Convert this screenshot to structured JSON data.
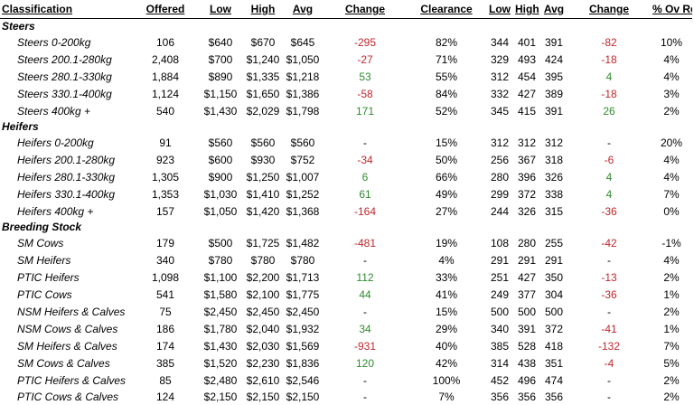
{
  "headers": {
    "classification": "Classification",
    "offered": "Offered",
    "low": "Low",
    "high": "High",
    "avg": "Avg",
    "change": "Change",
    "clearance": "Clearance",
    "low_res": "Low",
    "high_res": "High",
    "avg_res": "Avg",
    "change_res": "Change",
    "pct_ov_res": "% Ov Res"
  },
  "colors": {
    "negative": "#c0272d",
    "positive": "#2e8b2e"
  },
  "groups": [
    {
      "label": "Steers",
      "rows": [
        {
          "name": "Steers 0-200kg",
          "offered": "106",
          "low": "$640",
          "high": "$670",
          "avg": "$645",
          "change": "-295",
          "change_dir": "neg",
          "clearance": "82%",
          "low_res": "344",
          "high_res": "401",
          "avg_res": "391",
          "change_res": "-82",
          "change_res_dir": "neg",
          "pct": "10%"
        },
        {
          "name": "Steers 200.1-280kg",
          "offered": "2,408",
          "low": "$700",
          "high": "$1,240",
          "avg": "$1,050",
          "change": "-27",
          "change_dir": "neg",
          "clearance": "71%",
          "low_res": "329",
          "high_res": "493",
          "avg_res": "424",
          "change_res": "-18",
          "change_res_dir": "neg",
          "pct": "4%"
        },
        {
          "name": "Steers 280.1-330kg",
          "offered": "1,884",
          "low": "$890",
          "high": "$1,335",
          "avg": "$1,218",
          "change": "53",
          "change_dir": "pos",
          "clearance": "55%",
          "low_res": "312",
          "high_res": "454",
          "avg_res": "395",
          "change_res": "4",
          "change_res_dir": "pos",
          "pct": "4%"
        },
        {
          "name": "Steers 330.1-400kg",
          "offered": "1,124",
          "low": "$1,150",
          "high": "$1,650",
          "avg": "$1,386",
          "change": "-58",
          "change_dir": "neg",
          "clearance": "84%",
          "low_res": "332",
          "high_res": "427",
          "avg_res": "389",
          "change_res": "-18",
          "change_res_dir": "neg",
          "pct": "3%"
        },
        {
          "name": "Steers 400kg +",
          "offered": "540",
          "low": "$1,430",
          "high": "$2,029",
          "avg": "$1,798",
          "change": "171",
          "change_dir": "pos",
          "clearance": "52%",
          "low_res": "345",
          "high_res": "415",
          "avg_res": "391",
          "change_res": "26",
          "change_res_dir": "pos",
          "pct": "2%"
        }
      ]
    },
    {
      "label": "Heifers",
      "rows": [
        {
          "name": "Heifers 0-200kg",
          "offered": "91",
          "low": "$560",
          "high": "$560",
          "avg": "$560",
          "change": "-",
          "change_dir": "none",
          "clearance": "15%",
          "low_res": "312",
          "high_res": "312",
          "avg_res": "312",
          "change_res": "-",
          "change_res_dir": "none",
          "pct": "20%"
        },
        {
          "name": "Heifers 200.1-280kg",
          "offered": "923",
          "low": "$600",
          "high": "$930",
          "avg": "$752",
          "change": "-34",
          "change_dir": "neg",
          "clearance": "50%",
          "low_res": "256",
          "high_res": "367",
          "avg_res": "318",
          "change_res": "-6",
          "change_res_dir": "neg",
          "pct": "4%"
        },
        {
          "name": "Heifers 280.1-330kg",
          "offered": "1,305",
          "low": "$900",
          "high": "$1,250",
          "avg": "$1,007",
          "change": "6",
          "change_dir": "pos",
          "clearance": "66%",
          "low_res": "280",
          "high_res": "396",
          "avg_res": "326",
          "change_res": "4",
          "change_res_dir": "pos",
          "pct": "4%"
        },
        {
          "name": "Heifers 330.1-400kg",
          "offered": "1,353",
          "low": "$1,030",
          "high": "$1,410",
          "avg": "$1,252",
          "change": "61",
          "change_dir": "pos",
          "clearance": "49%",
          "low_res": "299",
          "high_res": "372",
          "avg_res": "338",
          "change_res": "4",
          "change_res_dir": "pos",
          "pct": "7%"
        },
        {
          "name": "Heifers 400kg +",
          "offered": "157",
          "low": "$1,050",
          "high": "$1,420",
          "avg": "$1,368",
          "change": "-164",
          "change_dir": "neg",
          "clearance": "27%",
          "low_res": "244",
          "high_res": "326",
          "avg_res": "315",
          "change_res": "-36",
          "change_res_dir": "neg",
          "pct": "0%"
        }
      ]
    },
    {
      "label": "Breeding Stock",
      "rows": [
        {
          "name": "SM Cows",
          "offered": "179",
          "low": "$500",
          "high": "$1,725",
          "avg": "$1,482",
          "change": "-481",
          "change_dir": "neg",
          "clearance": "19%",
          "low_res": "108",
          "high_res": "280",
          "avg_res": "255",
          "change_res": "-42",
          "change_res_dir": "neg",
          "pct": "-1%"
        },
        {
          "name": "SM Heifers",
          "offered": "340",
          "low": "$780",
          "high": "$780",
          "avg": "$780",
          "change": "-",
          "change_dir": "none",
          "clearance": "4%",
          "low_res": "291",
          "high_res": "291",
          "avg_res": "291",
          "change_res": "-",
          "change_res_dir": "none",
          "pct": "4%"
        },
        {
          "name": "PTIC Heifers",
          "offered": "1,098",
          "low": "$1,100",
          "high": "$2,200",
          "avg": "$1,713",
          "change": "112",
          "change_dir": "pos",
          "clearance": "33%",
          "low_res": "251",
          "high_res": "427",
          "avg_res": "350",
          "change_res": "-13",
          "change_res_dir": "neg",
          "pct": "2%"
        },
        {
          "name": "PTIC Cows",
          "offered": "541",
          "low": "$1,580",
          "high": "$2,100",
          "avg": "$1,775",
          "change": "44",
          "change_dir": "pos",
          "clearance": "41%",
          "low_res": "249",
          "high_res": "377",
          "avg_res": "304",
          "change_res": "-36",
          "change_res_dir": "neg",
          "pct": "1%"
        },
        {
          "name": "NSM Heifers & Calves",
          "offered": "75",
          "low": "$2,450",
          "high": "$2,450",
          "avg": "$2,450",
          "change": "-",
          "change_dir": "none",
          "clearance": "15%",
          "low_res": "500",
          "high_res": "500",
          "avg_res": "500",
          "change_res": "-",
          "change_res_dir": "none",
          "pct": "2%"
        },
        {
          "name": "NSM Cows & Calves",
          "offered": "186",
          "low": "$1,780",
          "high": "$2,040",
          "avg": "$1,932",
          "change": "34",
          "change_dir": "pos",
          "clearance": "29%",
          "low_res": "340",
          "high_res": "391",
          "avg_res": "372",
          "change_res": "-41",
          "change_res_dir": "neg",
          "pct": "1%"
        },
        {
          "name": "SM Heifers & Calves",
          "offered": "174",
          "low": "$1,430",
          "high": "$2,030",
          "avg": "$1,569",
          "change": "-931",
          "change_dir": "neg",
          "clearance": "40%",
          "low_res": "385",
          "high_res": "528",
          "avg_res": "418",
          "change_res": "-132",
          "change_res_dir": "neg",
          "pct": "7%"
        },
        {
          "name": "SM Cows & Calves",
          "offered": "385",
          "low": "$1,520",
          "high": "$2,230",
          "avg": "$1,836",
          "change": "120",
          "change_dir": "pos",
          "clearance": "42%",
          "low_res": "314",
          "high_res": "438",
          "avg_res": "351",
          "change_res": "-4",
          "change_res_dir": "neg",
          "pct": "5%"
        },
        {
          "name": "PTIC Heifers & Calves",
          "offered": "85",
          "low": "$2,480",
          "high": "$2,610",
          "avg": "$2,546",
          "change": "-",
          "change_dir": "none",
          "clearance": "100%",
          "low_res": "452",
          "high_res": "496",
          "avg_res": "474",
          "change_res": "-",
          "change_res_dir": "none",
          "pct": "2%"
        },
        {
          "name": "PTIC Cows & Calves",
          "offered": "124",
          "low": "$2,150",
          "high": "$2,150",
          "avg": "$2,150",
          "change": "-",
          "change_dir": "none",
          "clearance": "7%",
          "low_res": "356",
          "high_res": "356",
          "avg_res": "356",
          "change_res": "-",
          "change_res_dir": "none",
          "pct": "2%"
        }
      ]
    }
  ]
}
